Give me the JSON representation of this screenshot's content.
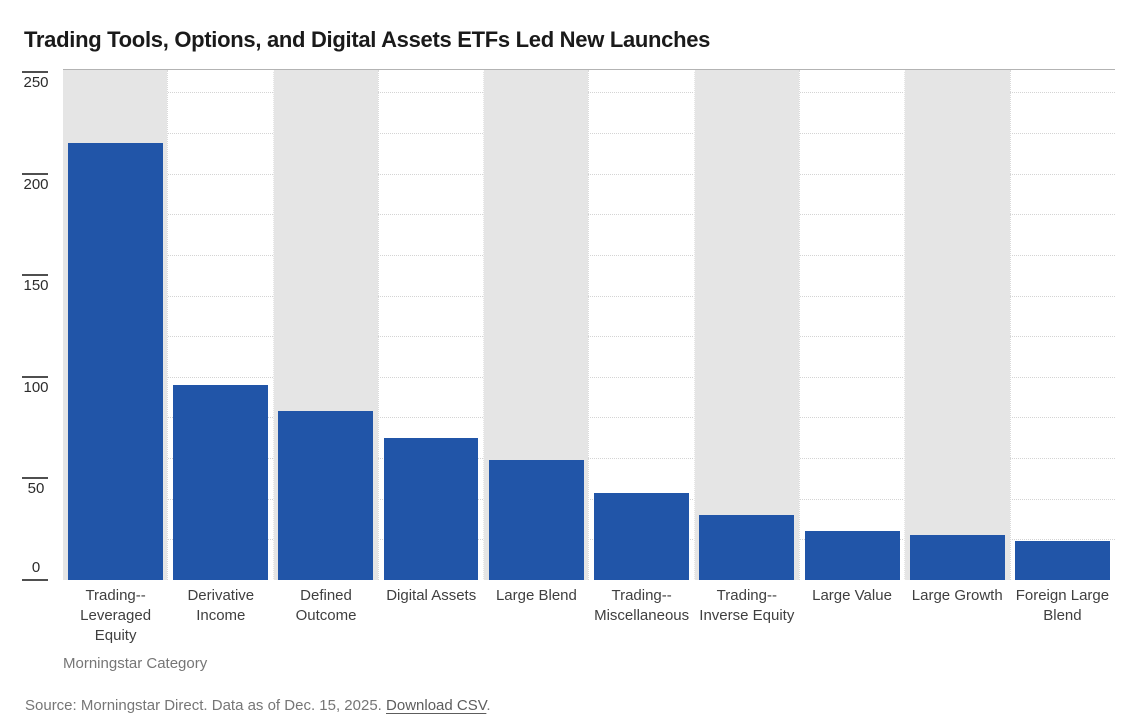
{
  "chart_data": {
    "type": "bar",
    "title": "Trading Tools, Options, and Digital Assets ETFs Led New Launches",
    "categories": [
      "Trading--Leveraged Equity",
      "Derivative Income",
      "Defined Outcome",
      "Digital Assets",
      "Large Blend",
      "Trading--Miscellaneous",
      "Trading--Inverse Equity",
      "Large Value",
      "Large Growth",
      "Foreign Large Blend"
    ],
    "category_lines": [
      [
        "Trading--",
        "Leveraged",
        "Equity"
      ],
      [
        "Derivative",
        "Income"
      ],
      [
        "Defined",
        "Outcome"
      ],
      [
        "Digital Assets"
      ],
      [
        "Large Blend"
      ],
      [
        "Trading--",
        "Miscellaneous"
      ],
      [
        "Trading--",
        "Inverse Equity"
      ],
      [
        "Large Value"
      ],
      [
        "Large Growth"
      ],
      [
        "Foreign Large",
        "Blend"
      ]
    ],
    "values": [
      215,
      96,
      83,
      70,
      59,
      43,
      32,
      24,
      22,
      19
    ],
    "xlabel": "Morningstar Category",
    "ylabel": "",
    "yticks": [
      0,
      50,
      100,
      150,
      200,
      250
    ],
    "ylim": [
      0,
      251
    ],
    "gridline_step": 20,
    "grid": "dotted",
    "legend_position": "none",
    "colors": {
      "bar": "#2155a8",
      "band": "#e5e5e5",
      "gridline": "#d4d4d4",
      "tick": "#4f4f4f"
    },
    "band_pattern": "alternating gray band behind odd columns"
  },
  "footer": {
    "source_text": "Source: Morningstar Direct. Data as of Dec. 15, 2025. ",
    "download_link": "Download CSV",
    "link_suffix": "."
  }
}
